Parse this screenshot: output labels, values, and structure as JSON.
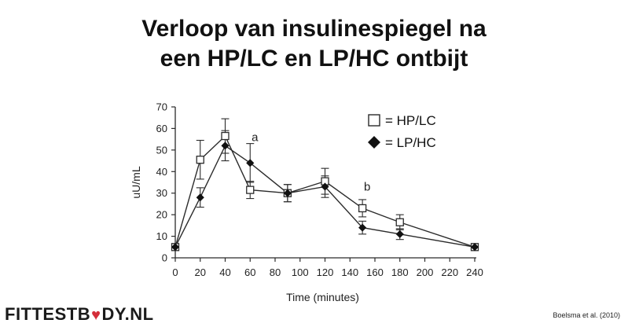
{
  "title_lines": [
    "Verloop van insulinespiegel na",
    "een HP/LC en LP/HC ontbijt"
  ],
  "chart_data": {
    "type": "line",
    "xlabel": "Time (minutes)",
    "ylabel": "uU/mL",
    "xlim": [
      0,
      240
    ],
    "ylim": [
      0,
      70
    ],
    "xticks": [
      0,
      20,
      40,
      60,
      80,
      100,
      120,
      140,
      160,
      180,
      200,
      220,
      240
    ],
    "yticks": [
      0,
      10,
      20,
      30,
      40,
      50,
      60,
      70
    ],
    "grid": false,
    "legend_position": "top-right",
    "series": [
      {
        "name": "= HP/LC",
        "marker": "open-square",
        "x": [
          0,
          20,
          40,
          60,
          90,
          120,
          150,
          180,
          240
        ],
        "y": [
          5,
          45.5,
          56.5,
          31.5,
          30,
          35.5,
          23,
          16.5,
          5
        ],
        "err": [
          1,
          9,
          8,
          4,
          4,
          6,
          4,
          3.5,
          1
        ]
      },
      {
        "name": "= LP/HC",
        "marker": "filled-diamond",
        "x": [
          0,
          20,
          40,
          60,
          90,
          120,
          150,
          180,
          240
        ],
        "y": [
          5,
          28,
          52,
          44,
          30,
          33,
          14,
          11,
          5
        ],
        "err": [
          1,
          4.5,
          7,
          9,
          4,
          5,
          3,
          2.5,
          1
        ]
      }
    ],
    "annotations": [
      {
        "text": "a",
        "x": 60,
        "y": 56
      },
      {
        "text": "b",
        "x": 150,
        "y": 33
      }
    ]
  },
  "logo": {
    "part1": "FITTESTB",
    "heart": "♥",
    "part2": "DY",
    "part3": ".NL"
  },
  "credit": "Boelsma et al. (2010)",
  "colors": {
    "line": "#2b2b2b",
    "heart": "#d42e3a"
  }
}
